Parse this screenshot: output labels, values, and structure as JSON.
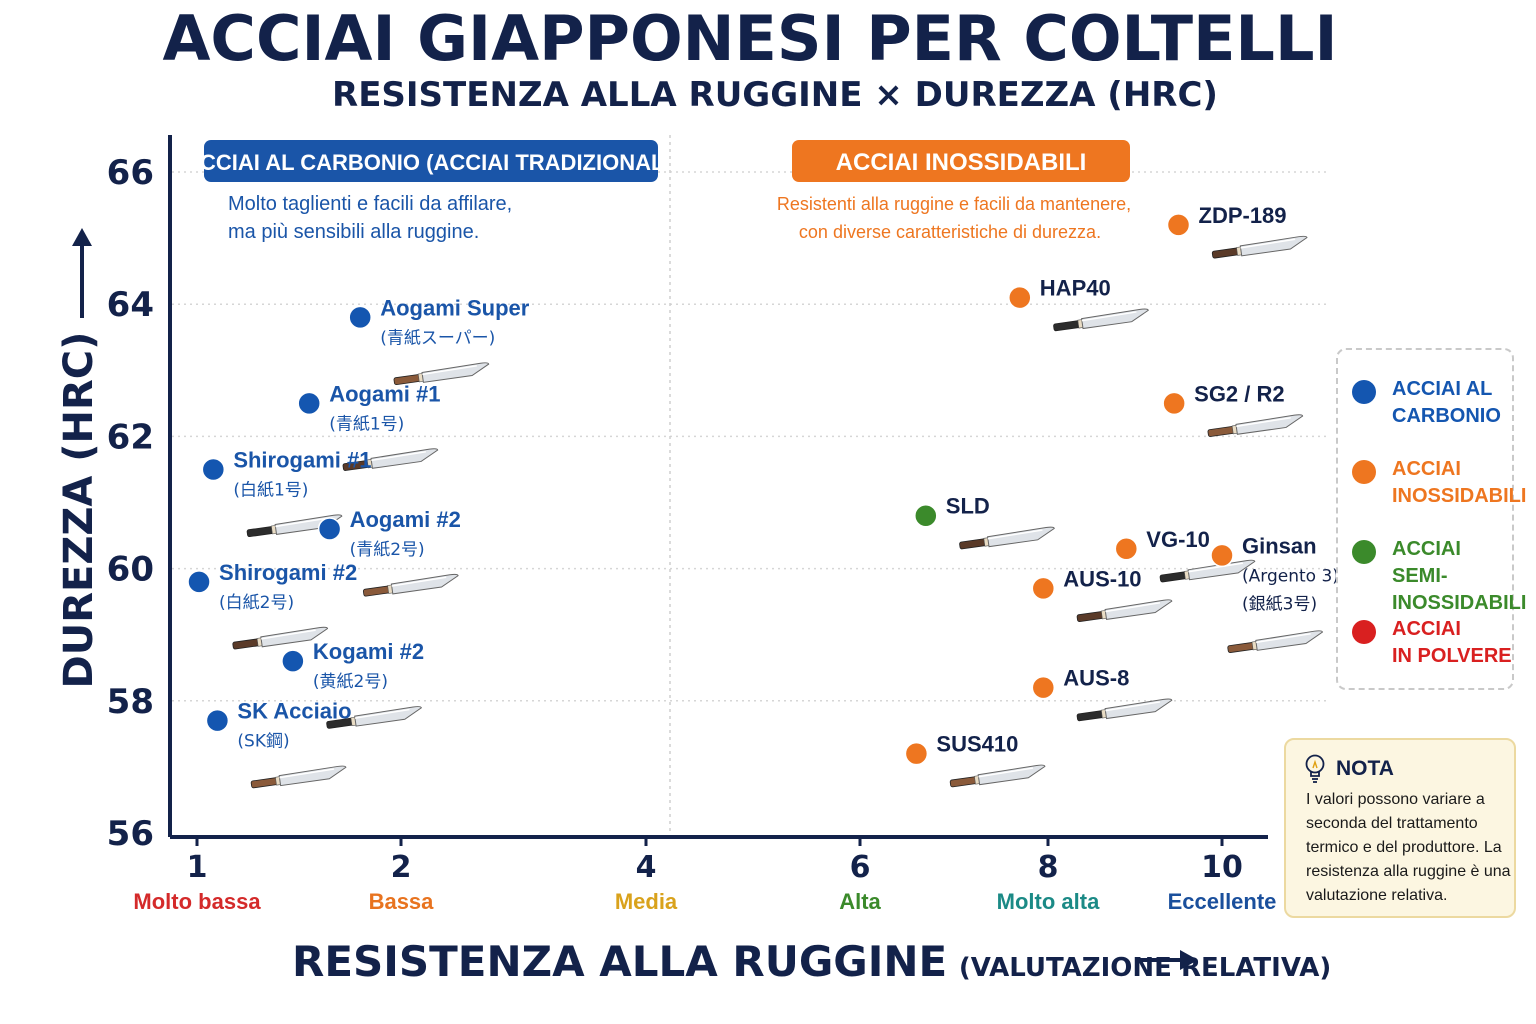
{
  "title": "ACCIAI GIAPPONESI PER COLTELLI",
  "subtitle": "RESISTENZA ALLA RUGGINE × DUREZZA (HRC)",
  "xaxis": {
    "label_main": "RESISTENZA ALLA RUGGINE",
    "label_note": "(VALUTAZIONE RELATIVA)",
    "ticks": [
      {
        "value": 1,
        "label": "1",
        "word": "Molto bassa",
        "color": "#d42a2a"
      },
      {
        "value": 2,
        "label": "2",
        "word": "Bassa",
        "color": "#e8731f"
      },
      {
        "value": 4,
        "label": "4",
        "word": "Media",
        "color": "#d9a21c"
      },
      {
        "value": 6,
        "label": "6",
        "word": "Alta",
        "color": "#3b8a2b"
      },
      {
        "value": 8,
        "label": "8",
        "word": "Molto alta",
        "color": "#1b8a86"
      },
      {
        "value": 10,
        "label": "10",
        "word": "Eccellente",
        "color": "#1a4f9c"
      }
    ]
  },
  "yaxis": {
    "label": "DUREZZA (HRC)",
    "ticks": [
      "56",
      "58",
      "60",
      "62",
      "64",
      "66"
    ]
  },
  "regions": {
    "carbon": {
      "title": "ACCIAI AL CARBONIO (ACCIAI TRADIZIONALI)",
      "desc_line1": "Molto taglienti e facili da affilare,",
      "desc_line2": "ma più sensibili alla ruggine.",
      "color": "#1a55a8"
    },
    "stainless": {
      "title": "ACCIAI INOSSIDABILI",
      "desc_line1": "Resistenti alla ruggine e facili da mantenere,",
      "desc_line2": "con diverse caratteristiche di durezza.",
      "color": "#ee7620"
    }
  },
  "legend": [
    {
      "label": "ACCIAI AL\nCARBONIO",
      "color": "#1456b0"
    },
    {
      "label": "ACCIAI\nINOSSIDABILI",
      "color": "#ee7620"
    },
    {
      "label": "ACCIAI\nSEMI-INOSSIDABILI",
      "color": "#3b8a2b"
    },
    {
      "label": "ACCIAI\nIN POLVERE",
      "color": "#d92020"
    }
  ],
  "note": {
    "title": "NOTA",
    "text": "I valori possono variare a seconda del trattamento termico e del produttore. La resistenza alla ruggine è una valutazione relativa."
  },
  "chart_data": {
    "type": "scatter",
    "title": "ACCIAI GIAPPONESI PER COLTELLI",
    "subtitle": "RESISTENZA ALLA RUGGINE × DUREZZA (HRC)",
    "xlabel": "RESISTENZA ALLA RUGGINE (VALUTAZIONE RELATIVA)",
    "ylabel": "DUREZZA (HRC)",
    "ylim": [
      56,
      66
    ],
    "grid": true,
    "legend_position": "right",
    "points": [
      {
        "name": "Aogami Super",
        "sub": "(青紙スーパー)",
        "x": 1.8,
        "y": 63.8,
        "category": "carbon"
      },
      {
        "name": "Aogami #1",
        "sub": "(青紙1号)",
        "x": 1.55,
        "y": 62.5,
        "category": "carbon"
      },
      {
        "name": "Shirogami #1",
        "sub": "(白紙1号)",
        "x": 1.08,
        "y": 61.5,
        "category": "carbon"
      },
      {
        "name": "Aogami #2",
        "sub": "(青紙2号)",
        "x": 1.65,
        "y": 60.6,
        "category": "carbon"
      },
      {
        "name": "Shirogami #2",
        "sub": "(白紙2号)",
        "x": 1.01,
        "y": 59.8,
        "category": "carbon"
      },
      {
        "name": "Kogami #2",
        "sub": "(黄紙2号)",
        "x": 1.47,
        "y": 58.6,
        "category": "carbon"
      },
      {
        "name": "SK Acciaio",
        "sub": "(SK鋼)",
        "x": 1.1,
        "y": 57.7,
        "category": "carbon"
      },
      {
        "name": "ZDP-189",
        "sub": "",
        "x": 9.5,
        "y": 65.2,
        "category": "stainless"
      },
      {
        "name": "HAP40",
        "sub": "",
        "x": 7.7,
        "y": 64.1,
        "category": "stainless"
      },
      {
        "name": "SG2 / R2",
        "sub": "",
        "x": 9.45,
        "y": 62.5,
        "category": "stainless"
      },
      {
        "name": "SLD",
        "sub": "",
        "x": 6.7,
        "y": 60.8,
        "category": "semi"
      },
      {
        "name": "VG-10",
        "sub": "",
        "x": 8.9,
        "y": 60.3,
        "category": "stainless"
      },
      {
        "name": "Ginsan",
        "sub": "(Argento 3)",
        "sub2": "(銀紙3号)",
        "x": 10.0,
        "y": 60.2,
        "category": "stainless"
      },
      {
        "name": "AUS-10",
        "sub": "",
        "x": 7.95,
        "y": 59.7,
        "category": "stainless"
      },
      {
        "name": "AUS-8",
        "sub": "",
        "x": 7.95,
        "y": 58.2,
        "category": "stainless"
      },
      {
        "name": "SUS410",
        "sub": "",
        "x": 6.6,
        "y": 57.2,
        "category": "stainless"
      }
    ]
  }
}
